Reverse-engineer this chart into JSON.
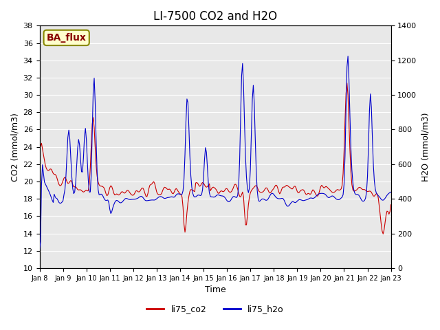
{
  "title": "LI-7500 CO2 and H2O",
  "xlabel": "Time",
  "ylabel_left": "CO2 (mmol/m3)",
  "ylabel_right": "H2O (mmol/m3)",
  "xlim": [
    0,
    360
  ],
  "ylim_left": [
    10,
    38
  ],
  "ylim_right": [
    0,
    1400
  ],
  "yticks_left": [
    10,
    12,
    14,
    16,
    18,
    20,
    22,
    24,
    26,
    28,
    30,
    32,
    34,
    36,
    38
  ],
  "yticks_right": [
    0,
    200,
    400,
    600,
    800,
    1000,
    1200,
    1400
  ],
  "xtick_labels": [
    "Jan 8",
    "Jan 9",
    "Jan 10",
    "Jan 11",
    "Jan 12",
    "Jan 13",
    "Jan 14",
    "Jan 15",
    "Jan 16",
    "Jan 17",
    "Jan 18",
    "Jan 19",
    "Jan 20",
    "Jan 21",
    "Jan 22",
    "Jan 23"
  ],
  "xtick_positions": [
    0,
    24,
    48,
    72,
    96,
    120,
    144,
    168,
    192,
    216,
    240,
    264,
    288,
    312,
    336,
    360
  ],
  "color_co2": "#cc0000",
  "color_h2o": "#0000cc",
  "legend_labels": [
    "li75_co2",
    "li75_h2o"
  ],
  "background_color": "#e8e8e8",
  "text_box_label": "BA_flux",
  "text_box_facecolor": "#ffffcc",
  "text_box_edgecolor": "#888800",
  "text_box_textcolor": "#880000",
  "grid_color": "#ffffff",
  "title_fontsize": 12
}
